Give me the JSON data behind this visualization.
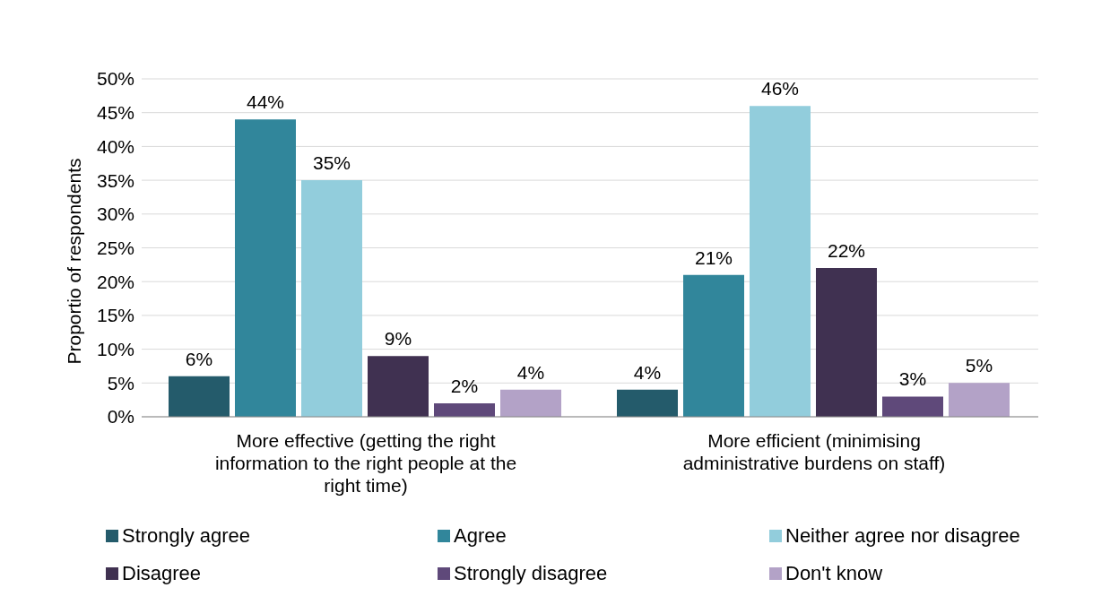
{
  "chart_data": {
    "type": "bar",
    "ylabel": "Proportio of respondents",
    "categories": [
      "More effective (getting the right information to the right people at the right time)",
      "More efficient (minimising administrative burdens on staff)"
    ],
    "series": [
      {
        "name": "Strongly agree",
        "color": "#245b6b",
        "values": [
          6,
          4
        ],
        "value_labels": [
          "6%",
          "4%"
        ]
      },
      {
        "name": "Agree",
        "color": "#31869b",
        "values": [
          44,
          21
        ],
        "value_labels": [
          "44%",
          "21%"
        ]
      },
      {
        "name": "Neither agree nor disagree",
        "color": "#92cddc",
        "values": [
          35,
          46
        ],
        "value_labels": [
          "35%",
          "46%"
        ]
      },
      {
        "name": "Disagree",
        "color": "#403151",
        "values": [
          9,
          22
        ],
        "value_labels": [
          "9%",
          "22%"
        ]
      },
      {
        "name": "Strongly disagree",
        "color": "#5f497a",
        "values": [
          2,
          3
        ],
        "value_labels": [
          "2%",
          "3%"
        ]
      },
      {
        "name": "Don't know",
        "color": "#b3a2c7",
        "values": [
          4,
          5
        ],
        "value_labels": [
          "4%",
          "5%"
        ]
      }
    ],
    "ylim": [
      0,
      50
    ],
    "yticks": [
      {
        "value": 0,
        "label": "0%"
      },
      {
        "value": 5,
        "label": "5%"
      },
      {
        "value": 10,
        "label": "10%"
      },
      {
        "value": 15,
        "label": "15%"
      },
      {
        "value": 20,
        "label": "20%"
      },
      {
        "value": 25,
        "label": "25%"
      },
      {
        "value": 30,
        "label": "30%"
      },
      {
        "value": 35,
        "label": "35%"
      },
      {
        "value": 40,
        "label": "40%"
      },
      {
        "value": 45,
        "label": "45%"
      },
      {
        "value": 50,
        "label": "50%"
      }
    ],
    "grid": "y",
    "legend": "bottom"
  }
}
